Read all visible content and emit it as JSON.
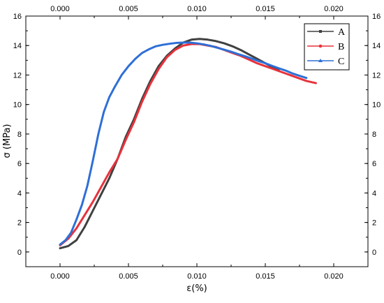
{
  "chart_data": {
    "type": "line",
    "title": "",
    "xlabel": "ε(%)",
    "ylabel": "σ (MPa)",
    "xlim": [
      -0.0025,
      0.0225
    ],
    "ylim": [
      -1,
      16
    ],
    "x_ticks": [
      "0.000",
      "0.005",
      "0.010",
      "0.015",
      "0.020"
    ],
    "y_ticks": [
      "0",
      "2",
      "4",
      "6",
      "8",
      "10",
      "12",
      "14",
      "16"
    ],
    "mirror_axes": "top-right",
    "grid": false,
    "legend": {
      "position": "top-right"
    },
    "series": [
      {
        "name": "A",
        "color": "#404040",
        "marker": "square",
        "points": [
          [
            0.0,
            0.25
          ],
          [
            0.0006,
            0.4
          ],
          [
            0.0012,
            0.8
          ],
          [
            0.0018,
            1.7
          ],
          [
            0.0024,
            2.8
          ],
          [
            0.003,
            3.9
          ],
          [
            0.0036,
            5.0
          ],
          [
            0.0042,
            6.3
          ],
          [
            0.0048,
            7.8
          ],
          [
            0.0054,
            9.0
          ],
          [
            0.006,
            10.4
          ],
          [
            0.0066,
            11.6
          ],
          [
            0.0072,
            12.6
          ],
          [
            0.0078,
            13.3
          ],
          [
            0.0084,
            13.8
          ],
          [
            0.009,
            14.2
          ],
          [
            0.0096,
            14.4
          ],
          [
            0.0102,
            14.45
          ],
          [
            0.0108,
            14.4
          ],
          [
            0.0114,
            14.3
          ],
          [
            0.012,
            14.15
          ],
          [
            0.0126,
            13.95
          ],
          [
            0.0132,
            13.7
          ],
          [
            0.0138,
            13.4
          ],
          [
            0.0144,
            13.1
          ],
          [
            0.015,
            12.8
          ],
          [
            0.0156,
            12.5
          ],
          [
            0.016,
            12.3
          ]
        ]
      },
      {
        "name": "B",
        "color": "#e8323c",
        "marker": "circle",
        "points": [
          [
            0.0,
            0.45
          ],
          [
            0.0006,
            0.9
          ],
          [
            0.0012,
            1.6
          ],
          [
            0.0018,
            2.5
          ],
          [
            0.0024,
            3.4
          ],
          [
            0.003,
            4.4
          ],
          [
            0.0036,
            5.4
          ],
          [
            0.0042,
            6.3
          ],
          [
            0.0048,
            7.6
          ],
          [
            0.0054,
            8.8
          ],
          [
            0.006,
            10.2
          ],
          [
            0.0066,
            11.4
          ],
          [
            0.0072,
            12.4
          ],
          [
            0.0078,
            13.2
          ],
          [
            0.0084,
            13.7
          ],
          [
            0.009,
            14.0
          ],
          [
            0.0096,
            14.1
          ],
          [
            0.0102,
            14.1
          ],
          [
            0.0108,
            14.0
          ],
          [
            0.0114,
            13.9
          ],
          [
            0.012,
            13.7
          ],
          [
            0.0126,
            13.5
          ],
          [
            0.0132,
            13.3
          ],
          [
            0.0138,
            13.05
          ],
          [
            0.0144,
            12.8
          ],
          [
            0.015,
            12.6
          ],
          [
            0.0156,
            12.4
          ],
          [
            0.0162,
            12.2
          ],
          [
            0.0168,
            12.0
          ],
          [
            0.0174,
            11.8
          ],
          [
            0.018,
            11.6
          ],
          [
            0.0187,
            11.45
          ]
        ]
      },
      {
        "name": "C",
        "color": "#2e6fd6",
        "marker": "triangle",
        "points": [
          [
            0.0,
            0.5
          ],
          [
            0.0004,
            0.8
          ],
          [
            0.0008,
            1.3
          ],
          [
            0.0012,
            2.2
          ],
          [
            0.0016,
            3.2
          ],
          [
            0.002,
            4.5
          ],
          [
            0.0024,
            6.2
          ],
          [
            0.0028,
            8.0
          ],
          [
            0.0032,
            9.5
          ],
          [
            0.0036,
            10.5
          ],
          [
            0.004,
            11.2
          ],
          [
            0.0045,
            12.0
          ],
          [
            0.005,
            12.6
          ],
          [
            0.0055,
            13.1
          ],
          [
            0.006,
            13.5
          ],
          [
            0.0065,
            13.75
          ],
          [
            0.007,
            13.95
          ],
          [
            0.0075,
            14.05
          ],
          [
            0.008,
            14.12
          ],
          [
            0.0085,
            14.18
          ],
          [
            0.009,
            14.2
          ],
          [
            0.0095,
            14.2
          ],
          [
            0.01,
            14.15
          ],
          [
            0.0105,
            14.08
          ],
          [
            0.011,
            13.98
          ],
          [
            0.0115,
            13.85
          ],
          [
            0.012,
            13.72
          ],
          [
            0.0125,
            13.58
          ],
          [
            0.013,
            13.42
          ],
          [
            0.0135,
            13.28
          ],
          [
            0.014,
            13.12
          ],
          [
            0.0145,
            12.95
          ],
          [
            0.015,
            12.8
          ],
          [
            0.0155,
            12.62
          ],
          [
            0.016,
            12.45
          ],
          [
            0.0165,
            12.3
          ],
          [
            0.017,
            12.1
          ],
          [
            0.0175,
            11.95
          ],
          [
            0.018,
            11.8
          ]
        ]
      }
    ]
  }
}
